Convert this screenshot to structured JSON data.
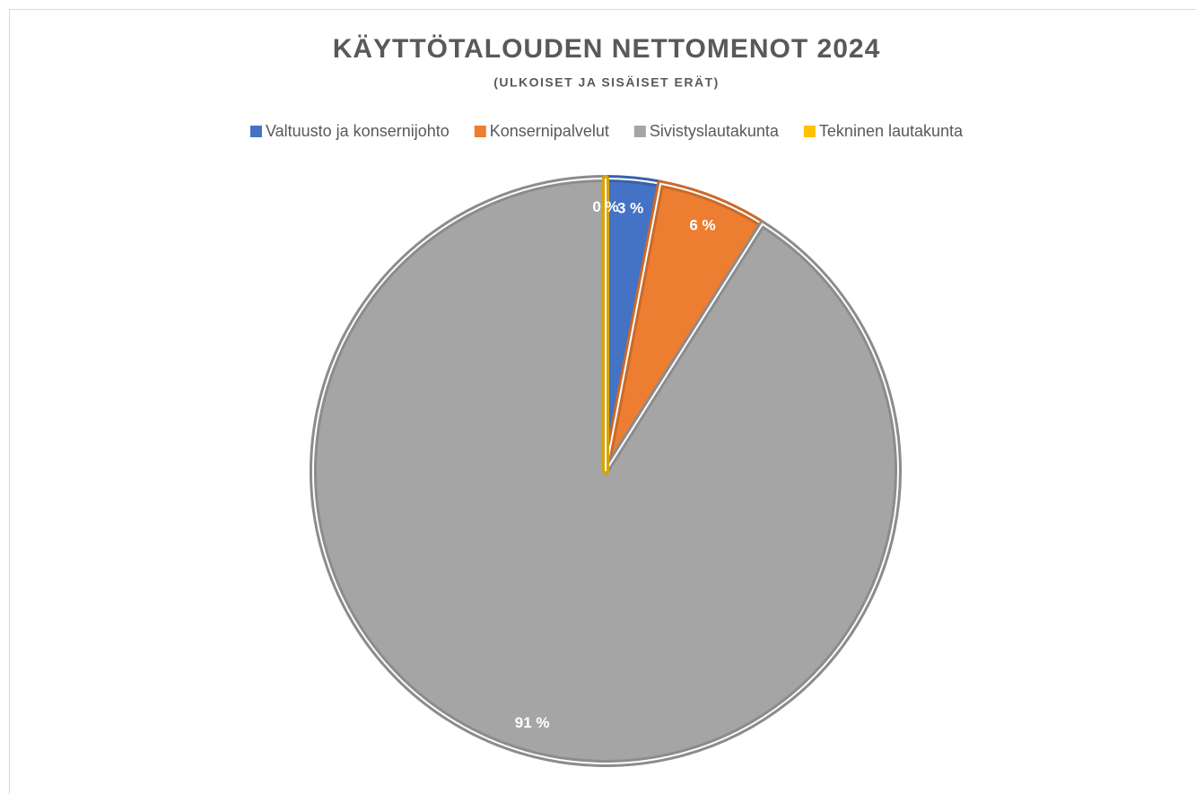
{
  "chart_data": {
    "type": "pie",
    "title": "KÄYTTÖTALOUDEN NETTOMENOT 2024",
    "subtitle": "(ULKOISET JA SISÄISET ERÄT)",
    "categories": [
      "Valtuusto ja konsernijohto",
      "Konsernipalvelut",
      "Sivistyslautakunta",
      "Tekninen lautakunta"
    ],
    "values": [
      3,
      6,
      91,
      0
    ],
    "value_labels": [
      "3 %",
      "6 %",
      "91 %",
      "0 %"
    ],
    "colors": [
      "#4472c4",
      "#ed7d31",
      "#a5a5a5",
      "#ffc000"
    ],
    "legend": "top"
  }
}
